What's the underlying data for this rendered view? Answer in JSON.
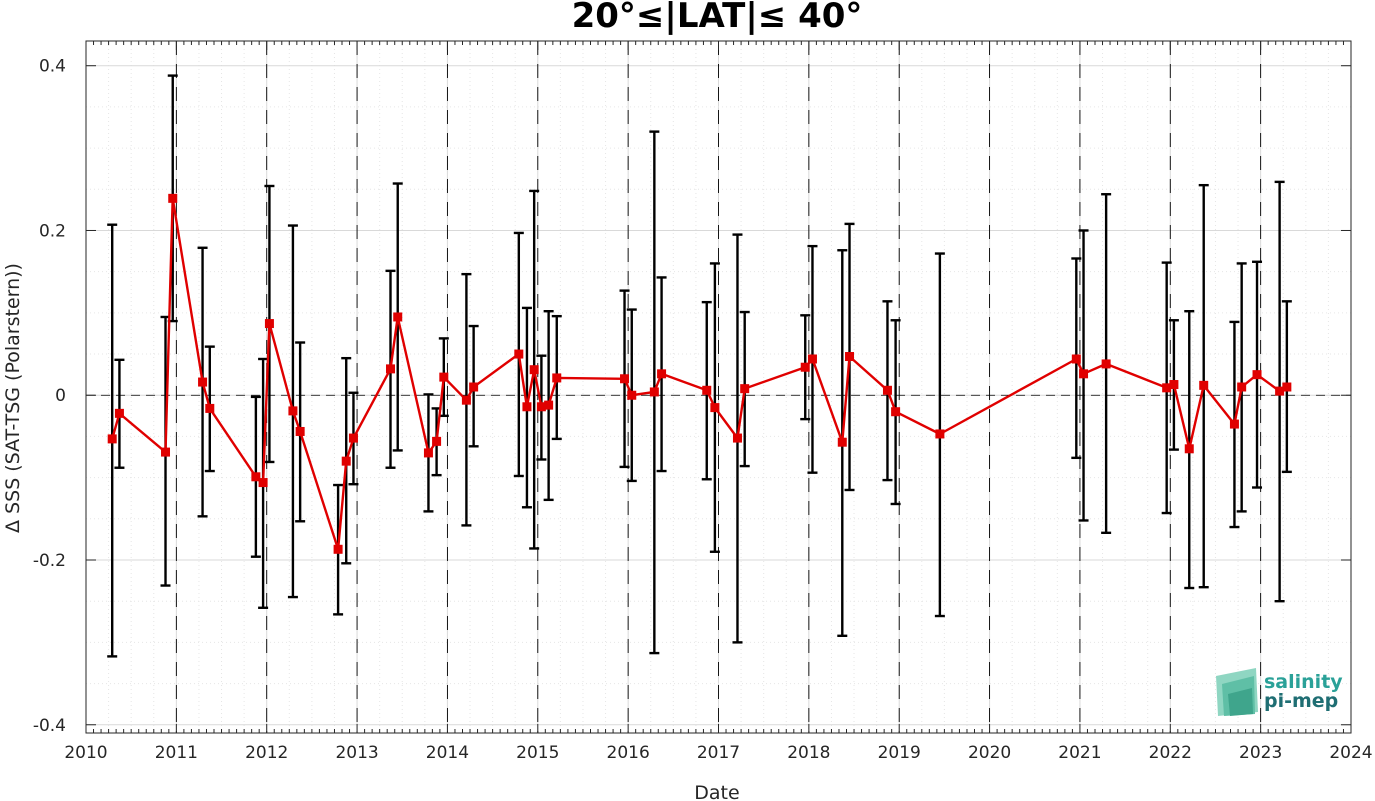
{
  "chart_data": {
    "type": "line",
    "title": "20°≤|LAT|≤ 40°",
    "xlabel": "Date",
    "ylabel": "Δ SSS (SAT-TSG (Polarstern))",
    "xlim": [
      2010,
      2024
    ],
    "ylim": [
      -0.41,
      0.43
    ],
    "x_ticks": [
      "2010",
      "2011",
      "2012",
      "2013",
      "2014",
      "2015",
      "2016",
      "2017",
      "2018",
      "2019",
      "2020",
      "2021",
      "2022",
      "2023",
      "2024"
    ],
    "y_ticks": [
      {
        "value": 0.4,
        "label": "0.4"
      },
      {
        "value": 0.2,
        "label": "0.2"
      },
      {
        "value": 0,
        "label": "0"
      },
      {
        "value": -0.2,
        "label": "-0.2"
      },
      {
        "value": -0.4,
        "label": "-0.4"
      }
    ],
    "grid": true,
    "reference_lines": {
      "horizontal_dashed_at": 0,
      "vertical_dashed_at_years": [
        2011,
        2012,
        2013,
        2014,
        2015,
        2016,
        2017,
        2018,
        2019,
        2020,
        2021,
        2022,
        2023
      ]
    },
    "series": [
      {
        "color": "#e00000",
        "marker": "square",
        "errorbar_color": "#000000",
        "points": [
          {
            "x": 2010.29,
            "y": -0.053,
            "lo": -0.317,
            "hi": 0.207
          },
          {
            "x": 2010.37,
            "y": -0.022,
            "lo": -0.088,
            "hi": 0.043
          },
          {
            "x": 2010.88,
            "y": -0.069,
            "lo": -0.231,
            "hi": 0.095
          },
          {
            "x": 2010.96,
            "y": 0.239,
            "lo": 0.09,
            "hi": 0.388
          },
          {
            "x": 2011.29,
            "y": 0.016,
            "lo": -0.147,
            "hi": 0.179
          },
          {
            "x": 2011.37,
            "y": -0.016,
            "lo": -0.092,
            "hi": 0.059
          },
          {
            "x": 2011.88,
            "y": -0.099,
            "lo": -0.196,
            "hi": -0.002
          },
          {
            "x": 2011.96,
            "y": -0.106,
            "lo": -0.258,
            "hi": 0.044
          },
          {
            "x": 2012.03,
            "y": 0.087,
            "lo": -0.081,
            "hi": 0.254
          },
          {
            "x": 2012.29,
            "y": -0.019,
            "lo": -0.245,
            "hi": 0.206
          },
          {
            "x": 2012.37,
            "y": -0.044,
            "lo": -0.153,
            "hi": 0.064
          },
          {
            "x": 2012.79,
            "y": -0.187,
            "lo": -0.266,
            "hi": -0.109
          },
          {
            "x": 2012.88,
            "y": -0.08,
            "lo": -0.204,
            "hi": 0.045
          },
          {
            "x": 2012.96,
            "y": -0.052,
            "lo": -0.108,
            "hi": 0.003
          },
          {
            "x": 2013.37,
            "y": 0.032,
            "lo": -0.088,
            "hi": 0.151
          },
          {
            "x": 2013.45,
            "y": 0.095,
            "lo": -0.067,
            "hi": 0.257
          },
          {
            "x": 2013.79,
            "y": -0.07,
            "lo": -0.141,
            "hi": 0.001
          },
          {
            "x": 2013.88,
            "y": -0.056,
            "lo": -0.097,
            "hi": -0.016
          },
          {
            "x": 2013.96,
            "y": 0.022,
            "lo": -0.025,
            "hi": 0.069
          },
          {
            "x": 2014.21,
            "y": -0.006,
            "lo": -0.158,
            "hi": 0.147
          },
          {
            "x": 2014.29,
            "y": 0.01,
            "lo": -0.062,
            "hi": 0.084
          },
          {
            "x": 2014.79,
            "y": 0.05,
            "lo": -0.098,
            "hi": 0.197
          },
          {
            "x": 2014.88,
            "y": -0.014,
            "lo": -0.136,
            "hi": 0.106
          },
          {
            "x": 2014.96,
            "y": 0.031,
            "lo": -0.186,
            "hi": 0.248
          },
          {
            "x": 2015.04,
            "y": -0.014,
            "lo": -0.078,
            "hi": 0.048
          },
          {
            "x": 2015.12,
            "y": -0.012,
            "lo": -0.127,
            "hi": 0.102
          },
          {
            "x": 2015.21,
            "y": 0.021,
            "lo": -0.053,
            "hi": 0.096
          },
          {
            "x": 2015.96,
            "y": 0.02,
            "lo": -0.087,
            "hi": 0.127
          },
          {
            "x": 2016.04,
            "y": -0.0,
            "lo": -0.104,
            "hi": 0.104
          },
          {
            "x": 2016.29,
            "y": 0.004,
            "lo": -0.313,
            "hi": 0.32
          },
          {
            "x": 2016.37,
            "y": 0.026,
            "lo": -0.092,
            "hi": 0.143
          },
          {
            "x": 2016.87,
            "y": 0.006,
            "lo": -0.102,
            "hi": 0.113
          },
          {
            "x": 2016.96,
            "y": -0.015,
            "lo": -0.19,
            "hi": 0.16
          },
          {
            "x": 2017.21,
            "y": -0.052,
            "lo": -0.3,
            "hi": 0.195
          },
          {
            "x": 2017.29,
            "y": 0.008,
            "lo": -0.086,
            "hi": 0.101
          },
          {
            "x": 2017.96,
            "y": 0.034,
            "lo": -0.029,
            "hi": 0.097
          },
          {
            "x": 2018.04,
            "y": 0.044,
            "lo": -0.094,
            "hi": 0.181
          },
          {
            "x": 2018.37,
            "y": -0.057,
            "lo": -0.292,
            "hi": 0.176
          },
          {
            "x": 2018.45,
            "y": 0.047,
            "lo": -0.115,
            "hi": 0.208
          },
          {
            "x": 2018.87,
            "y": 0.006,
            "lo": -0.103,
            "hi": 0.114
          },
          {
            "x": 2018.96,
            "y": -0.02,
            "lo": -0.132,
            "hi": 0.091
          },
          {
            "x": 2019.45,
            "y": -0.047,
            "lo": -0.268,
            "hi": 0.172
          },
          {
            "x": 2020.96,
            "y": 0.044,
            "lo": -0.076,
            "hi": 0.166
          },
          {
            "x": 2021.04,
            "y": 0.026,
            "lo": -0.152,
            "hi": 0.2
          },
          {
            "x": 2021.29,
            "y": 0.038,
            "lo": -0.167,
            "hi": 0.244
          },
          {
            "x": 2021.96,
            "y": 0.009,
            "lo": -0.143,
            "hi": 0.161
          },
          {
            "x": 2022.04,
            "y": 0.013,
            "lo": -0.066,
            "hi": 0.091
          },
          {
            "x": 2022.21,
            "y": -0.065,
            "lo": -0.234,
            "hi": 0.102
          },
          {
            "x": 2022.37,
            "y": 0.012,
            "lo": -0.233,
            "hi": 0.255
          },
          {
            "x": 2022.71,
            "y": -0.035,
            "lo": -0.16,
            "hi": 0.089
          },
          {
            "x": 2022.79,
            "y": 0.01,
            "lo": -0.141,
            "hi": 0.16
          },
          {
            "x": 2022.96,
            "y": 0.025,
            "lo": -0.112,
            "hi": 0.162
          },
          {
            "x": 2023.21,
            "y": 0.005,
            "lo": -0.25,
            "hi": 0.259
          },
          {
            "x": 2023.29,
            "y": 0.01,
            "lo": -0.093,
            "hi": 0.114
          }
        ]
      }
    ]
  },
  "logo": {
    "line1": "salinity",
    "line2": "pi-mep",
    "color1": "#2aa198",
    "color2": "#1f6e73"
  }
}
